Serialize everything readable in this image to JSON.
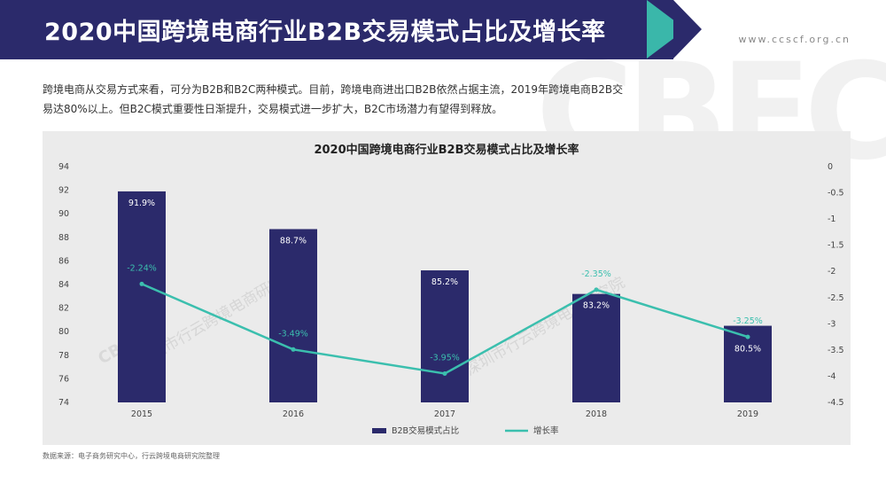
{
  "header": {
    "title": "2020中国跨境电商行业B2B交易模式占比及增长率",
    "website": "www.ccscf.org.cn",
    "bg_watermark": "CBEC"
  },
  "intro_text": "跨境电商从交易方式来看，可分为B2B和B2C两种模式。目前，跨境电商进出口B2B依然占据主流，2019年跨境电商B2B交易达80%以上。但B2C模式重要性日渐提升，交易模式进一步扩大，B2C市场潜力有望得到释放。",
  "source_text": "数据来源：电子商务研究中心，行云跨境电商研究院整理",
  "watermark_text": "深圳市行云跨境电商研究院",
  "watermark_logo": "CBEC",
  "colors": {
    "header_bg": "#2b2a6b",
    "accent": "#3bbfae",
    "bar": "#2b2a6b",
    "line": "#3bbfae",
    "panel_bg": "#ebebeb"
  },
  "chart_data": {
    "type": "bar",
    "title": "2020中国跨境电商行业B2B交易模式占比及增长率",
    "categories": [
      "2015",
      "2016",
      "2017",
      "2018",
      "2019"
    ],
    "y_left": {
      "min": 74,
      "max": 94,
      "ticks": [
        "94",
        "92",
        "90",
        "88",
        "86",
        "84",
        "82",
        "80",
        "78",
        "76",
        "74"
      ]
    },
    "y_right": {
      "min": -4.5,
      "max": 0,
      "ticks": [
        "0",
        "-0.5",
        "-1",
        "-1.5",
        "-2",
        "-2.5",
        "-3",
        "-3.5",
        "-4",
        "-4.5"
      ]
    },
    "series": [
      {
        "name": "B2B交易模式占比",
        "type": "bar",
        "axis": "left",
        "values": [
          91.9,
          88.7,
          85.2,
          83.2,
          80.5
        ],
        "labels": [
          "91.9%",
          "88.7%",
          "85.2%",
          "83.2%",
          "80.5%"
        ]
      },
      {
        "name": "增长率",
        "type": "line",
        "axis": "right",
        "values": [
          -2.24,
          -3.49,
          -3.95,
          -2.35,
          -3.25
        ],
        "labels": [
          "-2.24%",
          "-3.49%",
          "-3.95%",
          "-2.35%",
          "-3.25%"
        ]
      }
    ],
    "legend_position": "bottom",
    "grid": false
  }
}
